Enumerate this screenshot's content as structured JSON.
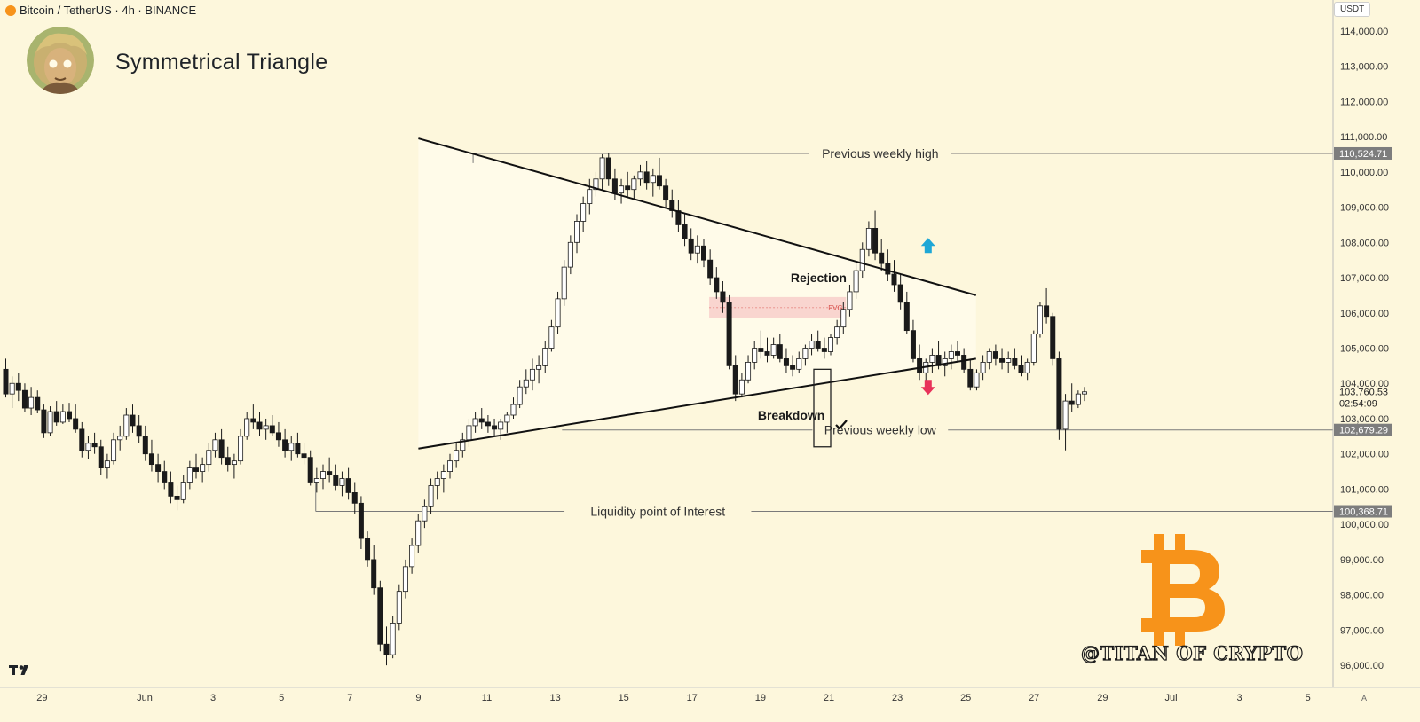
{
  "header": {
    "symbol": "Bitcoin / TetherUS · 4h · BINANCE",
    "title": "Symmetrical Triangle",
    "currency": "USDT"
  },
  "colors": {
    "background": "#fdf7dc",
    "up": "#ffffff",
    "down": "#1a1a1a",
    "up_arrow": "#1ea7d6",
    "down_arrow": "#e8325a",
    "fvg": "#f8d0cc",
    "bitcoin": "#f7931a"
  },
  "watermark": "@TITAN OF CRYPTO",
  "chart_data": {
    "type": "candlestick",
    "title": "Symmetrical Triangle",
    "ylim": [
      95600,
      114400
    ],
    "y_ticks": [
      96000,
      97000,
      98000,
      99000,
      100000,
      101000,
      102000,
      103000,
      104000,
      105000,
      106000,
      107000,
      108000,
      109000,
      110000,
      111000,
      112000,
      113000,
      114000
    ],
    "x_ticks": [
      {
        "label": "29",
        "day": -2
      },
      {
        "label": "Jun",
        "day": 1
      },
      {
        "label": "3",
        "day": 3
      },
      {
        "label": "5",
        "day": 5
      },
      {
        "label": "7",
        "day": 7
      },
      {
        "label": "9",
        "day": 9
      },
      {
        "label": "11",
        "day": 11
      },
      {
        "label": "13",
        "day": 13
      },
      {
        "label": "15",
        "day": 15
      },
      {
        "label": "17",
        "day": 17
      },
      {
        "label": "19",
        "day": 19
      },
      {
        "label": "21",
        "day": 21
      },
      {
        "label": "23",
        "day": 23
      },
      {
        "label": "25",
        "day": 25
      },
      {
        "label": "27",
        "day": 27
      },
      {
        "label": "29",
        "day": 29
      },
      {
        "label": "Jul",
        "day": 31
      },
      {
        "label": "3",
        "day": 33
      },
      {
        "label": "5",
        "day": 35
      }
    ],
    "x_axis_extra": "A",
    "levels": [
      {
        "label": "Previous weekly high",
        "value": 110524.71,
        "price_label": "110,524.71"
      },
      {
        "label": "Previous weekly low",
        "value": 102679.29,
        "price_label": "102,679.29"
      },
      {
        "label": "Liquidity point of Interest",
        "value": 100368.71,
        "price_label": "100,368.71"
      }
    ],
    "current_price": {
      "value": 103760.53,
      "price_label": "103,760.53",
      "countdown": "02:54:09"
    },
    "triangle": {
      "upper": [
        {
          "day": 9.0,
          "price": 110950
        },
        {
          "day": 25.3,
          "price": 106500
        }
      ],
      "lower": [
        {
          "day": 9.0,
          "price": 102150
        },
        {
          "day": 25.3,
          "price": 104700
        }
      ]
    },
    "fvg": {
      "label": "FVG",
      "day_from": 17.5,
      "day_to": 21.5,
      "price_from": 105850,
      "price_to": 106450
    },
    "annotations": [
      {
        "text": "Rejection",
        "day": 20.7,
        "price": 107000
      },
      {
        "text": "Breakdown",
        "day": 19.9,
        "price": 103100
      }
    ],
    "candles": [
      [
        104400,
        104700,
        103600,
        103700
      ],
      [
        103700,
        104200,
        103300,
        104000
      ],
      [
        104000,
        104300,
        103500,
        103800
      ],
      [
        103800,
        104000,
        103200,
        103300
      ],
      [
        103300,
        103900,
        103100,
        103600
      ],
      [
        103600,
        103800,
        103150,
        103250
      ],
      [
        103250,
        103400,
        102450,
        102600
      ],
      [
        102600,
        103350,
        102500,
        103200
      ],
      [
        103200,
        103500,
        102800,
        102900
      ],
      [
        102900,
        103400,
        102850,
        103200
      ],
      [
        103200,
        103450,
        102900,
        103000
      ],
      [
        103000,
        103400,
        102600,
        102700
      ],
      [
        102700,
        102900,
        101900,
        102100
      ],
      [
        102100,
        102500,
        101850,
        102300
      ],
      [
        102300,
        102600,
        102000,
        102200
      ],
      [
        102200,
        102400,
        101400,
        101600
      ],
      [
        101600,
        102000,
        101300,
        101800
      ],
      [
        101800,
        102600,
        101700,
        102400
      ],
      [
        102400,
        102800,
        102100,
        102500
      ],
      [
        102500,
        103300,
        102400,
        103100
      ],
      [
        103100,
        103400,
        102600,
        102800
      ],
      [
        102800,
        103100,
        102300,
        102500
      ],
      [
        102500,
        102800,
        101800,
        102000
      ],
      [
        102000,
        102400,
        101500,
        101700
      ],
      [
        101700,
        102000,
        101200,
        101500
      ],
      [
        101500,
        101800,
        101000,
        101200
      ],
      [
        101200,
        101500,
        100600,
        100800
      ],
      [
        100800,
        101100,
        100400,
        100700
      ],
      [
        100700,
        101400,
        100600,
        101200
      ],
      [
        101200,
        101800,
        101000,
        101600
      ],
      [
        101600,
        102000,
        101300,
        101500
      ],
      [
        101500,
        101900,
        101200,
        101700
      ],
      [
        101700,
        102300,
        101500,
        102100
      ],
      [
        102100,
        102600,
        101900,
        102400
      ],
      [
        102400,
        102700,
        101700,
        101900
      ],
      [
        101900,
        102200,
        101500,
        101700
      ],
      [
        101700,
        102000,
        101300,
        101800
      ],
      [
        101800,
        102700,
        101700,
        102500
      ],
      [
        102500,
        103200,
        102400,
        103000
      ],
      [
        103000,
        103400,
        102700,
        102900
      ],
      [
        102900,
        103200,
        102500,
        102700
      ],
      [
        102700,
        103000,
        102400,
        102800
      ],
      [
        102800,
        103100,
        102500,
        102600
      ],
      [
        102600,
        102900,
        102200,
        102400
      ],
      [
        102400,
        102700,
        101900,
        102100
      ],
      [
        102100,
        102500,
        101800,
        102300
      ],
      [
        102300,
        102600,
        101900,
        102000
      ],
      [
        102000,
        102300,
        101700,
        101900
      ],
      [
        101900,
        102100,
        101100,
        101200
      ],
      [
        101200,
        101600,
        100900,
        101300
      ],
      [
        101300,
        101700,
        101000,
        101500
      ],
      [
        101500,
        101900,
        101200,
        101400
      ],
      [
        101400,
        101700,
        100950,
        101100
      ],
      [
        101100,
        101500,
        100800,
        101300
      ],
      [
        101300,
        101600,
        100700,
        100900
      ],
      [
        100900,
        101200,
        100300,
        100600
      ],
      [
        100600,
        100800,
        99300,
        99600
      ],
      [
        99600,
        99800,
        98800,
        99000
      ],
      [
        99000,
        99400,
        98000,
        98200
      ],
      [
        98200,
        98400,
        96400,
        96600
      ],
      [
        96600,
        97100,
        96000,
        96300
      ],
      [
        96300,
        97400,
        96200,
        97200
      ],
      [
        97200,
        98300,
        97000,
        98100
      ],
      [
        98100,
        99000,
        97900,
        98800
      ],
      [
        98800,
        99600,
        98600,
        99400
      ],
      [
        99400,
        100300,
        99200,
        100100
      ],
      [
        100100,
        100700,
        99900,
        100500
      ],
      [
        100500,
        101300,
        100300,
        101100
      ],
      [
        101100,
        101500,
        100700,
        101300
      ],
      [
        101300,
        101700,
        100900,
        101500
      ],
      [
        101500,
        102000,
        101300,
        101800
      ],
      [
        101800,
        102300,
        101600,
        102100
      ],
      [
        102100,
        102600,
        101900,
        102400
      ],
      [
        102400,
        103000,
        102200,
        102800
      ],
      [
        102800,
        103200,
        102600,
        103000
      ],
      [
        103000,
        103300,
        102700,
        102900
      ],
      [
        102900,
        103100,
        102600,
        102800
      ],
      [
        102800,
        103000,
        102500,
        102700
      ],
      [
        102700,
        103000,
        102400,
        102900
      ],
      [
        102900,
        103200,
        102600,
        103100
      ],
      [
        103100,
        103600,
        103000,
        103400
      ],
      [
        103400,
        104100,
        103300,
        103900
      ],
      [
        103900,
        104400,
        103700,
        104100
      ],
      [
        104100,
        104700,
        103800,
        104400
      ],
      [
        104400,
        104800,
        104000,
        104500
      ],
      [
        104500,
        105200,
        104300,
        105000
      ],
      [
        105000,
        105800,
        104900,
        105600
      ],
      [
        105600,
        106600,
        105400,
        106400
      ],
      [
        106400,
        107500,
        106200,
        107300
      ],
      [
        107300,
        108200,
        107100,
        108000
      ],
      [
        108000,
        108800,
        107700,
        108600
      ],
      [
        108600,
        109300,
        108300,
        109100
      ],
      [
        109100,
        109800,
        108800,
        109500
      ],
      [
        109500,
        110000,
        109300,
        109800
      ],
      [
        109800,
        110500,
        109500,
        110400
      ],
      [
        110400,
        110550,
        109600,
        109800
      ],
      [
        109800,
        110100,
        109200,
        109400
      ],
      [
        109400,
        109800,
        109100,
        109600
      ],
      [
        109600,
        110000,
        109300,
        109500
      ],
      [
        109500,
        109900,
        109200,
        109800
      ],
      [
        109800,
        110200,
        109600,
        110000
      ],
      [
        110000,
        110300,
        109500,
        109700
      ],
      [
        109700,
        110100,
        109300,
        109900
      ],
      [
        109900,
        110400,
        109500,
        109600
      ],
      [
        109600,
        109800,
        109000,
        109200
      ],
      [
        109200,
        109500,
        108700,
        108900
      ],
      [
        108900,
        109200,
        108300,
        108500
      ],
      [
        108500,
        108800,
        107900,
        108100
      ],
      [
        108100,
        108400,
        107500,
        107700
      ],
      [
        107700,
        108200,
        107400,
        107900
      ],
      [
        107900,
        108100,
        107300,
        107500
      ],
      [
        107500,
        107800,
        106800,
        107000
      ],
      [
        107000,
        107300,
        106400,
        106600
      ],
      [
        106600,
        106900,
        106000,
        106300
      ],
      [
        106300,
        106500,
        104400,
        104500
      ],
      [
        104500,
        104800,
        103500,
        103700
      ],
      [
        103700,
        104300,
        103600,
        104100
      ],
      [
        104100,
        104800,
        104000,
        104600
      ],
      [
        104600,
        105200,
        104400,
        105000
      ],
      [
        105000,
        105500,
        104700,
        104900
      ],
      [
        104900,
        105300,
        104600,
        104800
      ],
      [
        104800,
        105300,
        104700,
        105100
      ],
      [
        105100,
        105400,
        104600,
        104700
      ],
      [
        104700,
        105000,
        104300,
        104500
      ],
      [
        104500,
        104800,
        104200,
        104400
      ],
      [
        104400,
        104900,
        104300,
        104700
      ],
      [
        104700,
        105100,
        104500,
        105000
      ],
      [
        105000,
        105400,
        104800,
        105200
      ],
      [
        105200,
        105500,
        104900,
        105000
      ],
      [
        105000,
        105300,
        104700,
        104900
      ],
      [
        104900,
        105400,
        104800,
        105300
      ],
      [
        105300,
        105800,
        105100,
        105600
      ],
      [
        105600,
        106300,
        105400,
        106100
      ],
      [
        106100,
        106800,
        105900,
        106600
      ],
      [
        106600,
        107400,
        106400,
        107200
      ],
      [
        107200,
        108000,
        107000,
        107800
      ],
      [
        107800,
        108600,
        107600,
        108400
      ],
      [
        108400,
        108900,
        107500,
        107700
      ],
      [
        107700,
        108100,
        107200,
        107400
      ],
      [
        107400,
        107800,
        106900,
        107100
      ],
      [
        107100,
        107500,
        106600,
        106800
      ],
      [
        106800,
        107100,
        106100,
        106300
      ],
      [
        106300,
        106600,
        105400,
        105500
      ],
      [
        105500,
        105800,
        104600,
        104700
      ],
      [
        104700,
        105100,
        104100,
        104300
      ],
      [
        104300,
        104700,
        103800,
        104600
      ],
      [
        104600,
        105000,
        104300,
        104800
      ],
      [
        104800,
        105200,
        104400,
        104500
      ],
      [
        104500,
        104900,
        104200,
        104700
      ],
      [
        104700,
        105100,
        104400,
        104900
      ],
      [
        104900,
        105200,
        104600,
        104800
      ],
      [
        104800,
        105000,
        104300,
        104400
      ],
      [
        104400,
        104700,
        103800,
        103900
      ],
      [
        103900,
        104400,
        103800,
        104300
      ],
      [
        104300,
        104800,
        104100,
        104600
      ],
      [
        104600,
        105000,
        104400,
        104900
      ],
      [
        104900,
        105100,
        104500,
        104700
      ],
      [
        104700,
        105000,
        104400,
        104600
      ],
      [
        104600,
        104900,
        104300,
        104700
      ],
      [
        104700,
        105000,
        104400,
        104500
      ],
      [
        104500,
        104800,
        104200,
        104300
      ],
      [
        104300,
        104700,
        104100,
        104600
      ],
      [
        104600,
        105500,
        104500,
        105400
      ],
      [
        105400,
        106300,
        105300,
        106200
      ],
      [
        106200,
        106700,
        105700,
        105900
      ],
      [
        105900,
        106000,
        104500,
        104700
      ],
      [
        104700,
        104900,
        102400,
        102700
      ],
      [
        102700,
        103700,
        102100,
        103500
      ],
      [
        103500,
        104000,
        103200,
        103400
      ],
      [
        103400,
        103800,
        103300,
        103700
      ],
      [
        103700,
        103900,
        103500,
        103760
      ]
    ]
  }
}
